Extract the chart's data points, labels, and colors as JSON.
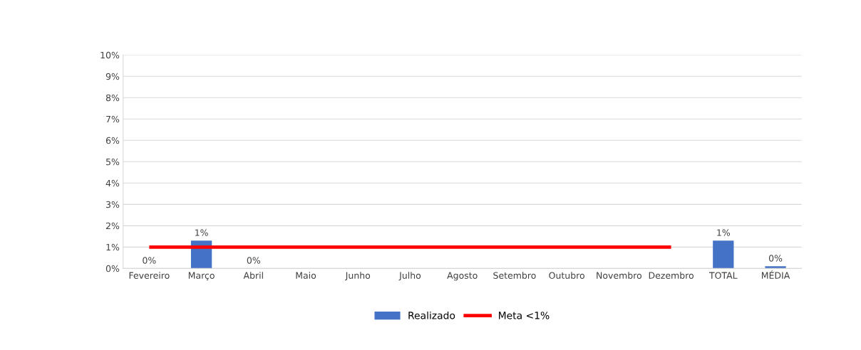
{
  "chart_data": {
    "type": "bar",
    "categories": [
      "Fevereiro",
      "Março",
      "Abril",
      "Maio",
      "Junho",
      "Julho",
      "Agosto",
      "Setembro",
      "Outubro",
      "Novembro",
      "Dezembro",
      "TOTAL",
      "MÉDIA"
    ],
    "series": [
      {
        "name": "Realizado",
        "color": "#4472c4",
        "values": [
          0,
          1.3,
          0,
          null,
          null,
          null,
          null,
          null,
          null,
          null,
          null,
          1.3,
          0.1
        ],
        "value_labels": [
          "0%",
          "1%",
          "0%",
          null,
          null,
          null,
          null,
          null,
          null,
          null,
          null,
          "1%",
          "0%"
        ]
      },
      {
        "name": "Meta <1%",
        "type": "line",
        "color": "#ff0000",
        "values": [
          1,
          1,
          1,
          1,
          1,
          1,
          1,
          1,
          1,
          1,
          1,
          null,
          null
        ]
      }
    ],
    "ylim": [
      0,
      10
    ],
    "yticks": [
      {
        "value": 0,
        "label": "0%"
      },
      {
        "value": 1,
        "label": "1%"
      },
      {
        "value": 2,
        "label": "2%"
      },
      {
        "value": 3,
        "label": "3%"
      },
      {
        "value": 4,
        "label": "4%"
      },
      {
        "value": 5,
        "label": "5%"
      },
      {
        "value": 6,
        "label": "6%"
      },
      {
        "value": 7,
        "label": "7%"
      },
      {
        "value": 8,
        "label": "8%"
      },
      {
        "value": 9,
        "label": "9%"
      },
      {
        "value": 10,
        "label": "10%"
      }
    ],
    "grid": "y",
    "legend": "bottom"
  }
}
